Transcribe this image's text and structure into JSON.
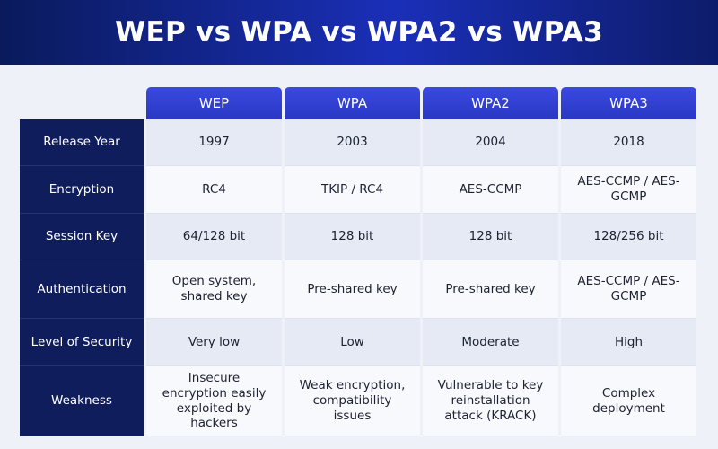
{
  "header": {
    "title": "WEP vs WPA vs WPA2 vs WPA3"
  },
  "table": {
    "columns": [
      "WEP",
      "WPA",
      "WPA2",
      "WPA3"
    ],
    "rows": [
      {
        "label": "Release Year",
        "cells": [
          "1997",
          "2003",
          "2004",
          "2018"
        ]
      },
      {
        "label": "Encryption",
        "cells": [
          "RC4",
          "TKIP / RC4",
          "AES-CCMP",
          "AES-CCMP / AES-GCMP"
        ]
      },
      {
        "label": "Session Key",
        "cells": [
          "64/128 bit",
          "128 bit",
          "128 bit",
          "128/256 bit"
        ]
      },
      {
        "label": "Authentication",
        "cells": [
          "Open system, shared key",
          "Pre-shared key",
          "Pre-shared key",
          "AES-CCMP / AES-GCMP"
        ]
      },
      {
        "label": "Level of Security",
        "cells": [
          "Very low",
          "Low",
          "Moderate",
          "High"
        ]
      },
      {
        "label": "Weakness",
        "cells": [
          "Insecure encryption easily exploited by hackers",
          "Weak encryption, compatibility issues",
          "Vulnerable to key reinstallation attack (KRACK)",
          "Complex deployment"
        ]
      }
    ]
  }
}
